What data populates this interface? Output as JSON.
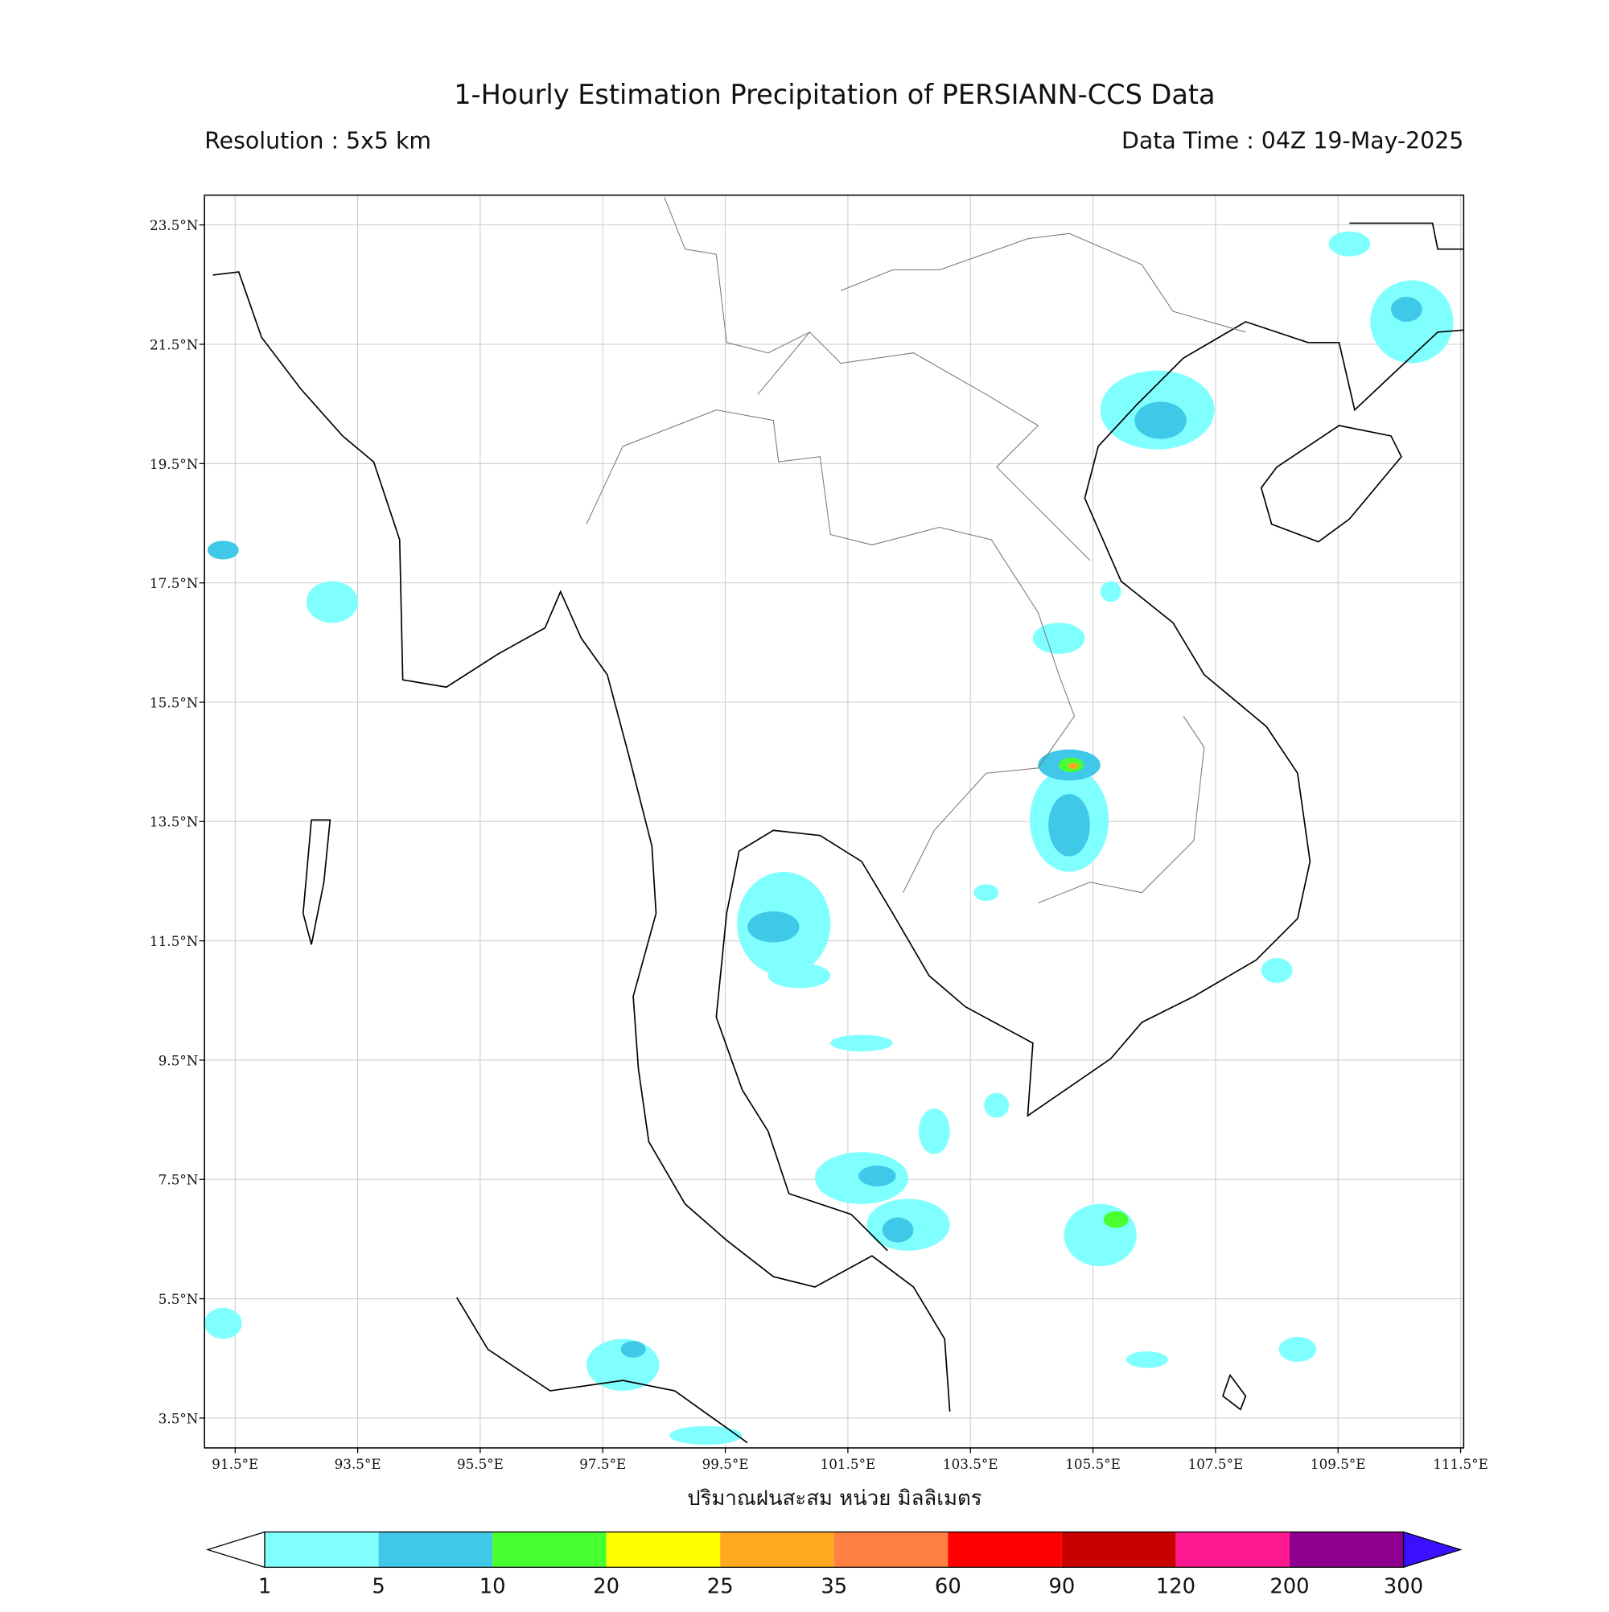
{
  "map": {
    "title": "1-Hourly Estimation Precipitation of PERSIANN-CCS Data",
    "resolution": "Resolution : 5x5 km",
    "data_time": "Data Time : 04Z 19-May-2025",
    "xlabel": "ปริมาณฝนสะสม หน่วย มิลลิเมตร",
    "xlim": [
      91,
      111.55
    ],
    "ylim": [
      3,
      24
    ],
    "grid": true,
    "xticks": [
      {
        "value": 91.5,
        "label": "91.5°E"
      },
      {
        "value": 93.5,
        "label": "93.5°E"
      },
      {
        "value": 95.5,
        "label": "95.5°E"
      },
      {
        "value": 97.5,
        "label": "97.5°E"
      },
      {
        "value": 99.5,
        "label": "99.5°E"
      },
      {
        "value": 101.5,
        "label": "101.5°E"
      },
      {
        "value": 103.5,
        "label": "103.5°E"
      },
      {
        "value": 105.5,
        "label": "105.5°E"
      },
      {
        "value": 107.5,
        "label": "107.5°E"
      },
      {
        "value": 109.5,
        "label": "109.5°E"
      },
      {
        "value": 111.5,
        "label": "111.5°E"
      }
    ],
    "yticks": [
      {
        "value": 23.5,
        "label": "23.5°N"
      },
      {
        "value": 21.5,
        "label": "21.5°N"
      },
      {
        "value": 19.5,
        "label": "19.5°N"
      },
      {
        "value": 17.5,
        "label": "17.5°N"
      },
      {
        "value": 15.5,
        "label": "15.5°N"
      },
      {
        "value": 13.5,
        "label": "13.5°N"
      },
      {
        "value": 11.5,
        "label": "11.5°N"
      },
      {
        "value": 9.5,
        "label": "9.5°N"
      },
      {
        "value": 7.5,
        "label": "7.5°N"
      },
      {
        "value": 5.5,
        "label": "5.5°N"
      },
      {
        "value": 3.5,
        "label": "3.5°N"
      }
    ],
    "colorbar": {
      "levels": [
        1,
        5,
        10,
        20,
        25,
        35,
        60,
        90,
        120,
        200,
        300
      ],
      "colors": [
        "#80ffff",
        "#40c8e8",
        "#48ff30",
        "#ffff00",
        "#ffa820",
        "#ff8040",
        "#ff0000",
        "#c80000",
        "#ff1890",
        "#900090"
      ],
      "under_color": "#ffffff",
      "over_color": "#3a10ff"
    }
  }
}
